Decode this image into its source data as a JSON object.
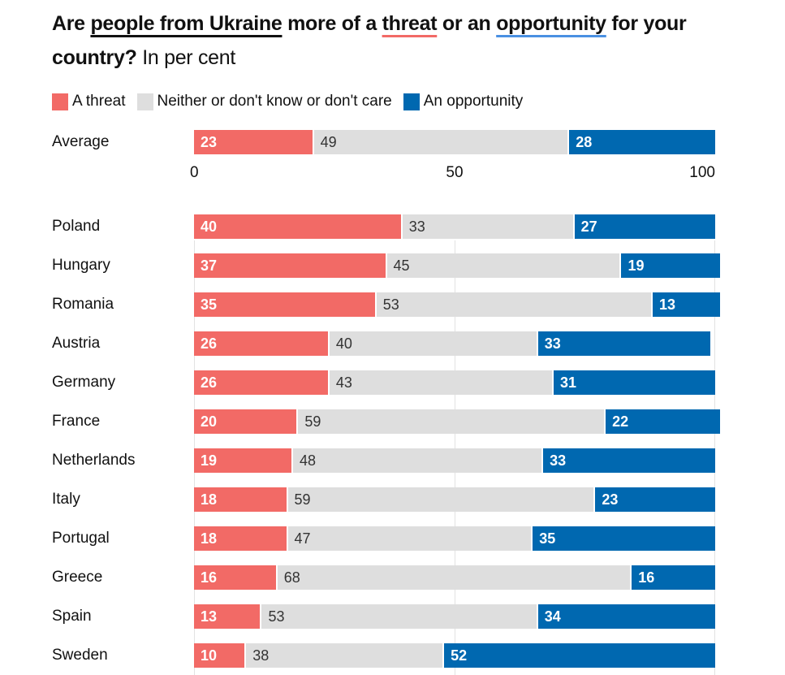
{
  "title": {
    "part1": "Are ",
    "u1": "people from Ukraine",
    "part2": " more of a ",
    "u2": "threat",
    "part3": " or an ",
    "u3": "opportunity",
    "part4": " for your country?",
    "subtitle": " In per cent"
  },
  "colors": {
    "threat": "#f26a66",
    "neither": "#dedede",
    "opportunity": "#0068b0"
  },
  "chart_data": {
    "type": "bar",
    "stacked": true,
    "orientation": "horizontal",
    "title": "Are people from Ukraine more of a threat or an opportunity for your country? In per cent",
    "legend": [
      "A threat",
      "Neither or don't know or don't care",
      "An opportunity"
    ],
    "legend_position": "top-left",
    "xlim": [
      0,
      100
    ],
    "xticks": [
      "0",
      "50",
      "100"
    ],
    "average": {
      "label": "Average",
      "values": [
        23,
        49,
        28
      ]
    },
    "categories": [
      "Poland",
      "Hungary",
      "Romania",
      "Austria",
      "Germany",
      "France",
      "Netherlands",
      "Italy",
      "Portugal",
      "Greece",
      "Spain",
      "Sweden"
    ],
    "series": [
      {
        "name": "A threat",
        "values": [
          40,
          37,
          35,
          26,
          26,
          20,
          19,
          18,
          18,
          16,
          13,
          10
        ]
      },
      {
        "name": "Neither or don't know or don't care",
        "values": [
          33,
          45,
          53,
          40,
          43,
          59,
          48,
          59,
          47,
          68,
          53,
          38
        ]
      },
      {
        "name": "An opportunity",
        "values": [
          27,
          19,
          13,
          33,
          31,
          22,
          33,
          23,
          35,
          16,
          34,
          52
        ]
      }
    ]
  }
}
